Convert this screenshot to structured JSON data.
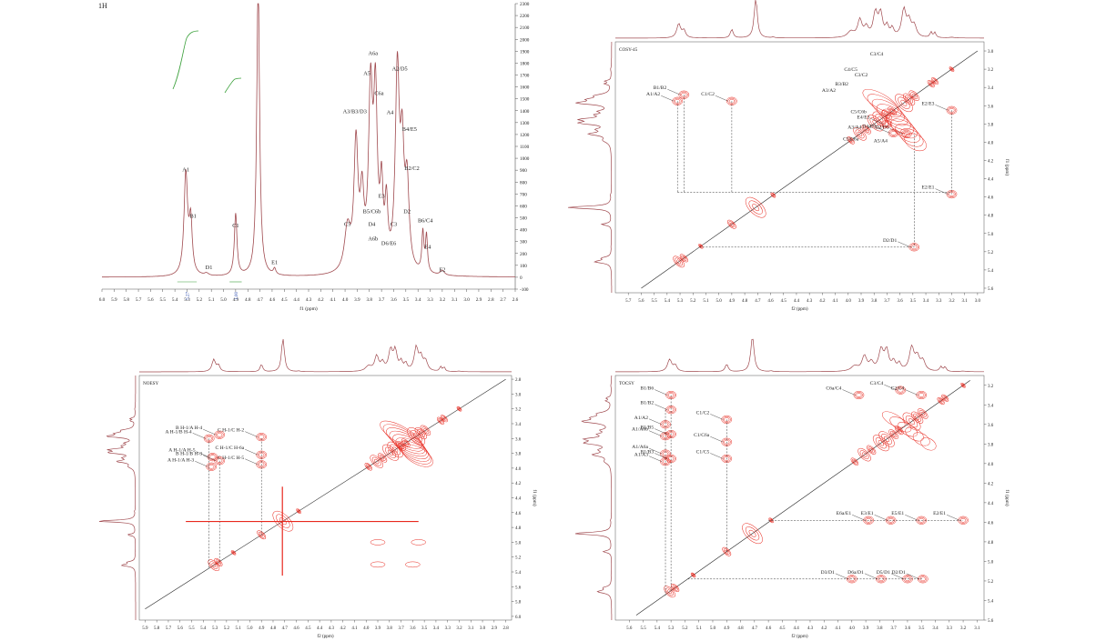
{
  "colors": {
    "spectrum": "#a04a4f",
    "contour": "#e8281e",
    "contour_blue": "#3848d8",
    "integral": "#3aa03a",
    "axis": "#555555",
    "text": "#222222",
    "diag": "#222222"
  },
  "chart_data": [
    {
      "type": "line",
      "title": "1H",
      "xlabel": "f1 (ppm)",
      "x_ticks": [
        "6.0",
        "5.9",
        "5.8",
        "5.7",
        "5.6",
        "5.5",
        "5.4",
        "5.3",
        "5.2",
        "5.1",
        "5.0",
        "4.9",
        "4.8",
        "4.7",
        "4.6",
        "4.5",
        "4.4",
        "4.3",
        "4.2",
        "4.1",
        "4.0",
        "3.9",
        "3.8",
        "3.7",
        "3.6",
        "3.5",
        "3.4",
        "3.3",
        "3.2",
        "3.1",
        "3.0",
        "2.9",
        "2.8",
        "2.7",
        "2.6"
      ],
      "y_ticks": [
        "2300",
        "2200",
        "2100",
        "2000",
        "1900",
        "1800",
        "1700",
        "1600",
        "1500",
        "1400",
        "1300",
        "1200",
        "1100",
        "1000",
        "900",
        "800",
        "700",
        "600",
        "500",
        "400",
        "300",
        "200",
        "100",
        "0",
        "-100"
      ],
      "xlim": [
        6.0,
        2.6
      ],
      "ylim": [
        -100,
        2300
      ],
      "spectrum_peaks": [
        {
          "ppm": 5.31,
          "h": 850,
          "w": 0.018
        },
        {
          "ppm": 5.27,
          "h": 430,
          "w": 0.015
        },
        {
          "ppm": 5.14,
          "h": 20,
          "w": 0.02
        },
        {
          "ppm": 4.9,
          "h": 520,
          "w": 0.013
        },
        {
          "ppm": 4.715,
          "h": 2500,
          "w": 0.014
        },
        {
          "ppm": 4.58,
          "h": 50,
          "w": 0.012
        },
        {
          "ppm": 3.98,
          "h": 360,
          "w": 0.03
        },
        {
          "ppm": 3.91,
          "h": 1050,
          "w": 0.02
        },
        {
          "ppm": 3.86,
          "h": 560,
          "w": 0.018
        },
        {
          "ppm": 3.79,
          "h": 1450,
          "w": 0.02
        },
        {
          "ppm": 3.75,
          "h": 1380,
          "w": 0.018
        },
        {
          "ppm": 3.7,
          "h": 620,
          "w": 0.015
        },
        {
          "ppm": 3.66,
          "h": 500,
          "w": 0.014
        },
        {
          "ppm": 3.57,
          "h": 1650,
          "w": 0.02
        },
        {
          "ppm": 3.53,
          "h": 900,
          "w": 0.018
        },
        {
          "ppm": 3.49,
          "h": 700,
          "w": 0.02
        },
        {
          "ppm": 3.36,
          "h": 330,
          "w": 0.01
        },
        {
          "ppm": 3.33,
          "h": 310,
          "w": 0.01
        },
        {
          "ppm": 3.2,
          "h": 40,
          "w": 0.02
        }
      ],
      "integrals": [
        {
          "ppm_start": 5.38,
          "ppm_end": 5.22,
          "value": "5.27"
        },
        {
          "ppm_start": 4.95,
          "ppm_end": 4.85,
          "value": "1.00"
        }
      ],
      "annotations": [
        {
          "text": "A1",
          "ppm": 5.31,
          "y": 890
        },
        {
          "text": "B1",
          "ppm": 5.25,
          "y": 500
        },
        {
          "text": "D1",
          "ppm": 5.12,
          "y": 70
        },
        {
          "text": "C1",
          "ppm": 4.9,
          "y": 420
        },
        {
          "text": "E1",
          "ppm": 4.58,
          "y": 110
        },
        {
          "text": "A3/B3/D3",
          "ppm": 3.92,
          "y": 1380
        },
        {
          "text": "A5",
          "ppm": 3.82,
          "y": 1700
        },
        {
          "text": "A6a",
          "ppm": 3.77,
          "y": 1870
        },
        {
          "text": "C6a",
          "ppm": 3.72,
          "y": 1530
        },
        {
          "text": "A2/D5",
          "ppm": 3.55,
          "y": 1740
        },
        {
          "text": "A4",
          "ppm": 3.63,
          "y": 1370
        },
        {
          "text": "B4/E5",
          "ppm": 3.47,
          "y": 1230
        },
        {
          "text": "B2/C2",
          "ppm": 3.45,
          "y": 900
        },
        {
          "text": "C5",
          "ppm": 3.98,
          "y": 430
        },
        {
          "text": "E3",
          "ppm": 3.7,
          "y": 670
        },
        {
          "text": "B5/C6b",
          "ppm": 3.78,
          "y": 540
        },
        {
          "text": "D4",
          "ppm": 3.78,
          "y": 430
        },
        {
          "text": "C3",
          "ppm": 3.6,
          "y": 430
        },
        {
          "text": "A6b",
          "ppm": 3.77,
          "y": 310
        },
        {
          "text": "D6/E6",
          "ppm": 3.64,
          "y": 270
        },
        {
          "text": "D2",
          "ppm": 3.49,
          "y": 540
        },
        {
          "text": "B6/C4",
          "ppm": 3.34,
          "y": 460
        },
        {
          "text": "E4",
          "ppm": 3.32,
          "y": 240
        },
        {
          "text": "E2",
          "ppm": 3.2,
          "y": 50
        }
      ]
    },
    {
      "type": "heatmap",
      "title": "COSY-45",
      "xlabel": "f2 (ppm)",
      "ylabel": "f1 (ppm)",
      "xlim": [
        5.8,
        2.95
      ],
      "ylim": [
        2.9,
        5.65
      ],
      "x_ticks": [
        "5.7",
        "5.6",
        "5.5",
        "5.4",
        "5.3",
        "5.2",
        "5.1",
        "5.0",
        "4.9",
        "4.8",
        "4.7",
        "4.6",
        "4.5",
        "4.4",
        "4.3",
        "4.2",
        "4.1",
        "4.0",
        "3.9",
        "3.8",
        "3.7",
        "3.6",
        "3.5",
        "3.4",
        "3.3",
        "3.2",
        "3.1",
        "3.0"
      ],
      "y_ticks": [
        "3.0",
        "3.2",
        "3.4",
        "3.6",
        "3.8",
        "4.0",
        "4.2",
        "4.4",
        "4.6",
        "4.8",
        "5.0",
        "5.2",
        "5.4",
        "5.6"
      ],
      "cross_peaks": [
        {
          "f2": 5.32,
          "f1": 3.55,
          "label": "A1/A2"
        },
        {
          "f2": 5.27,
          "f1": 3.48,
          "label": "B1/B2"
        },
        {
          "f2": 4.9,
          "f1": 3.55,
          "label": "C1/C2"
        },
        {
          "f2": 3.2,
          "f1": 4.57,
          "label": "E2/E1"
        },
        {
          "f2": 3.2,
          "f1": 3.65,
          "label": "E2/E3"
        },
        {
          "f2": 3.49,
          "f1": 5.15,
          "label": "D2/D1"
        },
        {
          "f2": 3.7,
          "f1": 3.8,
          "label": "E4/E3"
        },
        {
          "f2": 3.55,
          "f1": 3.91,
          "label": "D2/D3"
        },
        {
          "f2": 3.65,
          "f1": 3.9,
          "label": "D4/D3"
        }
      ],
      "labels": [
        "C3/C4",
        "C4/C5",
        "C3/C2",
        "B3/B2",
        "A3/A2",
        "C5/C6b",
        "A3/A4",
        "C5/C6a",
        "A5/A4"
      ]
    },
    {
      "type": "heatmap",
      "title": "NOESY",
      "xlabel": "f2 (ppm)",
      "ylabel": "f1 (ppm)",
      "xlim": [
        5.95,
        2.75
      ],
      "ylim": [
        2.75,
        6.05
      ],
      "x_ticks": [
        "5.9",
        "5.8",
        "5.7",
        "5.6",
        "5.5",
        "5.4",
        "5.3",
        "5.2",
        "5.1",
        "5.0",
        "4.9",
        "4.8",
        "4.7",
        "4.6",
        "4.5",
        "4.4",
        "4.3",
        "4.2",
        "4.1",
        "4.0",
        "3.9",
        "3.8",
        "3.7",
        "3.6",
        "3.5",
        "3.4",
        "3.3",
        "3.2",
        "3.1",
        "3.0",
        "2.9",
        "2.8"
      ],
      "y_ticks": [
        "2.8",
        "3.0",
        "3.2",
        "3.4",
        "3.6",
        "3.8",
        "4.0",
        "4.2",
        "4.4",
        "4.6",
        "4.8",
        "5.0",
        "5.2",
        "5.4",
        "5.6",
        "5.8",
        "6.0"
      ],
      "cross_peaks": [
        {
          "f2": 5.35,
          "f1": 3.6,
          "label": "A H-1/B H-4"
        },
        {
          "f2": 5.32,
          "f1": 3.85,
          "label": "A H-1/A H-5"
        },
        {
          "f2": 5.33,
          "f1": 3.98,
          "label": "A H-1/A H-3"
        },
        {
          "f2": 5.26,
          "f1": 3.55,
          "label": "B H-1/A H-4"
        },
        {
          "f2": 5.26,
          "f1": 3.9,
          "label": "B H-1/B H-3"
        },
        {
          "f2": 4.9,
          "f1": 3.58,
          "label": "C H-1/C H-2"
        },
        {
          "f2": 4.9,
          "f1": 3.82,
          "label": "C H-1/C H-6a"
        },
        {
          "f2": 4.9,
          "f1": 3.95,
          "label": "C H-1/C H-5"
        }
      ]
    },
    {
      "type": "heatmap",
      "title": "TOCSY",
      "xlabel": "f2 (ppm)",
      "ylabel": "f1 (ppm)",
      "xlim": [
        5.7,
        3.05
      ],
      "ylim": [
        3.1,
        5.6
      ],
      "x_ticks": [
        "5.6",
        "5.5",
        "5.4",
        "5.3",
        "5.2",
        "5.1",
        "5.0",
        "4.9",
        "4.8",
        "4.7",
        "4.6",
        "4.5",
        "4.4",
        "4.3",
        "4.2",
        "4.1",
        "4.0",
        "3.9",
        "3.8",
        "3.7",
        "3.6",
        "3.5",
        "3.4",
        "3.3",
        "3.2",
        "3.1"
      ],
      "y_ticks": [
        "3.2",
        "3.4",
        "3.6",
        "3.8",
        "4.0",
        "4.2",
        "4.4",
        "4.6",
        "4.8",
        "5.0",
        "5.2",
        "5.4",
        "5.6"
      ],
      "cross_peaks": [
        {
          "f2": 5.3,
          "f1": 3.3,
          "label": "B1/B6"
        },
        {
          "f2": 5.3,
          "f1": 3.45,
          "label": "B1/B2"
        },
        {
          "f2": 5.34,
          "f1": 3.6,
          "label": "A1/A2"
        },
        {
          "f2": 5.34,
          "f1": 3.72,
          "label": "A1/A6b"
        },
        {
          "f2": 5.3,
          "f1": 3.7,
          "label": "B1/B5"
        },
        {
          "f2": 5.34,
          "f1": 3.9,
          "label": "A1/A6a"
        },
        {
          "f2": 5.34,
          "f1": 3.98,
          "label": "A1/A3"
        },
        {
          "f2": 5.3,
          "f1": 3.95,
          "label": "B1/B3"
        },
        {
          "f2": 4.9,
          "f1": 3.55,
          "label": "C1/C2"
        },
        {
          "f2": 4.9,
          "f1": 3.78,
          "label": "C1/C6a"
        },
        {
          "f2": 4.9,
          "f1": 3.95,
          "label": "C1/C5"
        },
        {
          "f2": 3.95,
          "f1": 3.3,
          "label": "C6a/C4"
        },
        {
          "f2": 3.65,
          "f1": 3.25,
          "label": "C3/C4"
        },
        {
          "f2": 3.5,
          "f1": 3.3,
          "label": "C2/C4"
        },
        {
          "f2": 3.72,
          "f1": 4.58,
          "label": "E3/E1"
        },
        {
          "f2": 3.5,
          "f1": 4.58,
          "label": "E5/E1"
        },
        {
          "f2": 3.2,
          "f1": 4.58,
          "label": "E2/E1"
        },
        {
          "f2": 3.88,
          "f1": 4.58,
          "label": "E6a/E1"
        },
        {
          "f2": 4.0,
          "f1": 5.18,
          "label": "D3/D1"
        },
        {
          "f2": 3.79,
          "f1": 5.18,
          "label": "D6a/D1"
        },
        {
          "f2": 3.6,
          "f1": 5.18,
          "label": "D5/D1"
        },
        {
          "f2": 3.49,
          "f1": 5.18,
          "label": "D2/D1"
        }
      ]
    }
  ]
}
